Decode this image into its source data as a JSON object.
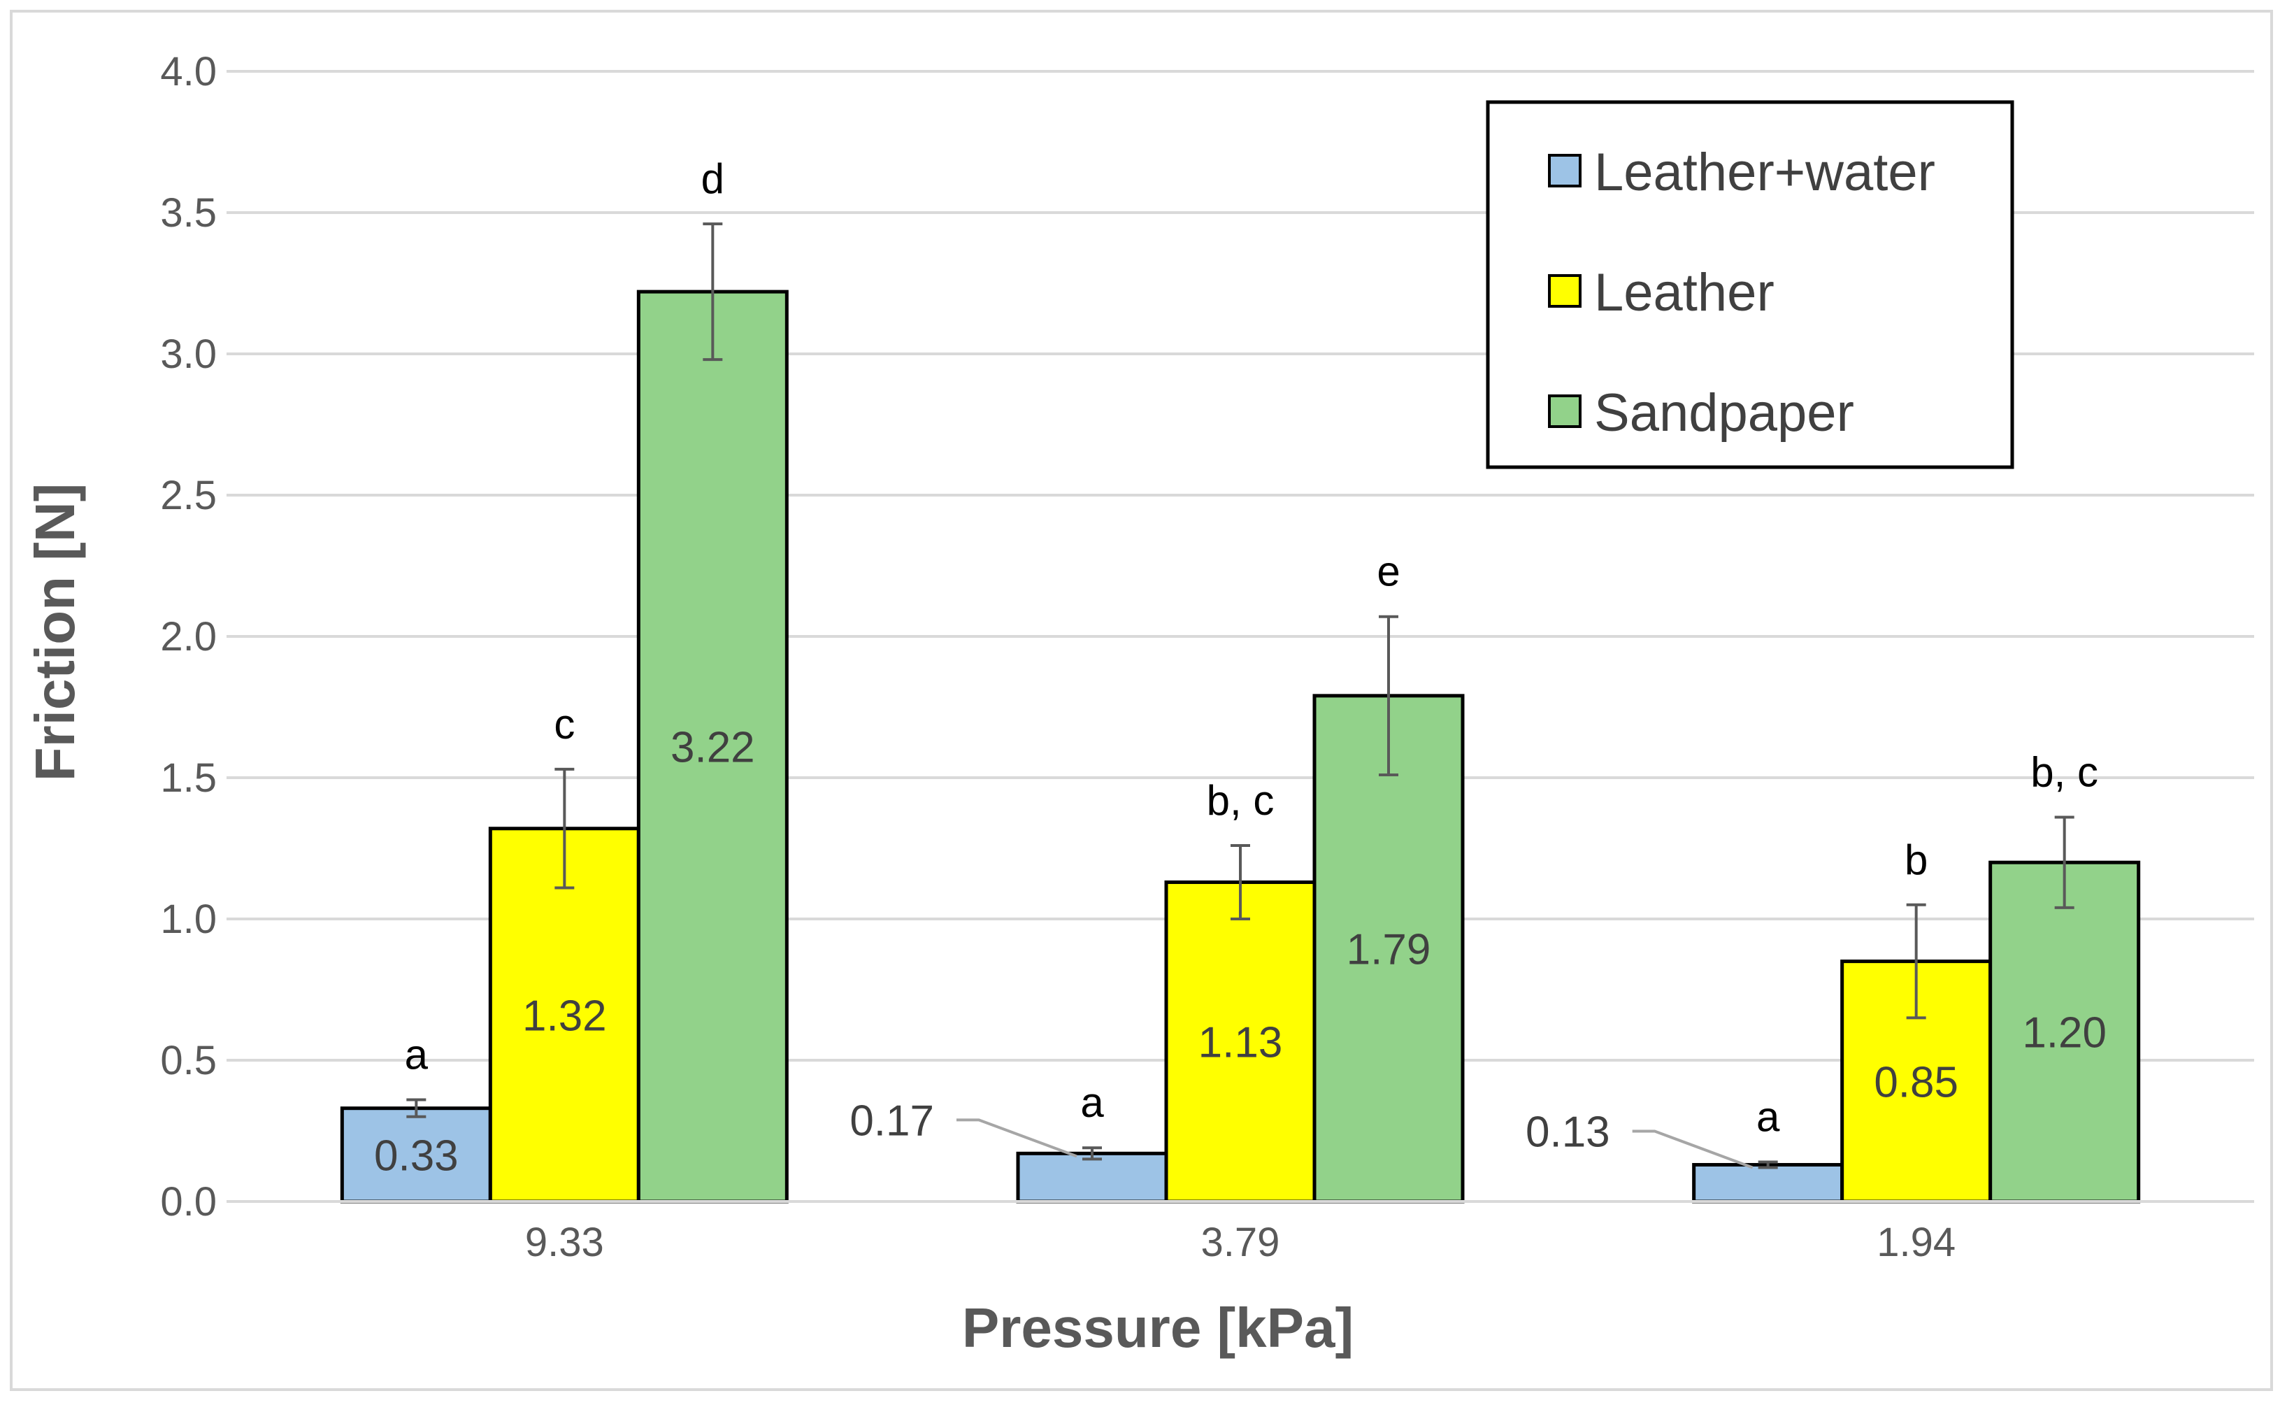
{
  "chart_data": {
    "type": "bar",
    "title": "",
    "xlabel": "Pressure [kPa]",
    "ylabel": "Friction [N]",
    "ylim": [
      0,
      4.0
    ],
    "ytick_step": 0.5,
    "yticks": [
      "0.0",
      "0.5",
      "1.0",
      "1.5",
      "2.0",
      "2.5",
      "3.0",
      "3.5",
      "4.0"
    ],
    "grid": true,
    "legend_position": "top-right",
    "categories": [
      "9.33",
      "3.79",
      "1.94"
    ],
    "series": [
      {
        "name": "Leather+water",
        "color": "#9dc3e6",
        "label_color": "#404040",
        "values": [
          0.33,
          0.17,
          0.13
        ],
        "value_labels": [
          "0.33",
          "0.17",
          "0.13"
        ],
        "label_inside": [
          true,
          false,
          false
        ],
        "errors": [
          0.03,
          0.02,
          0.01
        ],
        "letters": [
          "a",
          "a",
          "a"
        ]
      },
      {
        "name": "Leather",
        "color": "#ffff00",
        "label_color": "#404040",
        "values": [
          1.32,
          1.13,
          0.85
        ],
        "value_labels": [
          "1.32",
          "1.13",
          "0.85"
        ],
        "label_inside": [
          true,
          true,
          true
        ],
        "errors": [
          0.21,
          0.13,
          0.2
        ],
        "letters": [
          "c",
          "b, c",
          "b"
        ]
      },
      {
        "name": "Sandpaper",
        "color": "#92d28a",
        "label_color": "#404040",
        "values": [
          3.22,
          1.79,
          1.2
        ],
        "value_labels": [
          "3.22",
          "1.79",
          "1.20"
        ],
        "label_inside": [
          true,
          true,
          true
        ],
        "errors": [
          0.24,
          0.28,
          0.16
        ],
        "letters": [
          "d",
          "e",
          "b, c"
        ]
      }
    ]
  }
}
